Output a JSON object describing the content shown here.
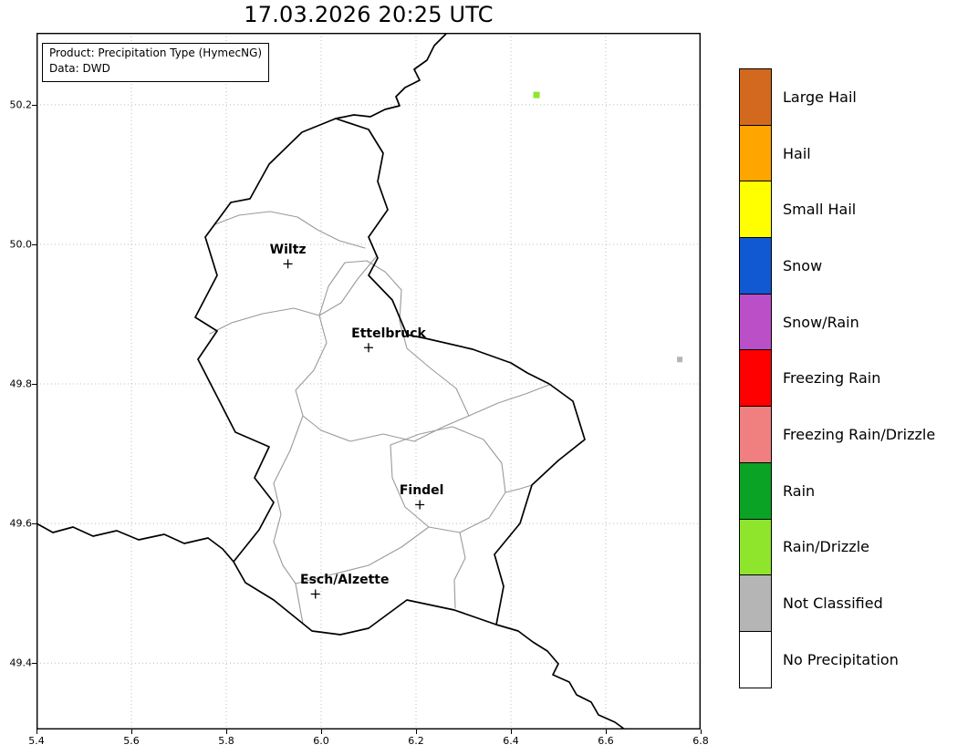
{
  "title": "17.03.2026 20:25 UTC",
  "info_box": {
    "product": "Product: Precipitation Type (HymecNG)",
    "source": "Data: DWD"
  },
  "axes": {
    "x_ticks": [
      "5.4",
      "5.6",
      "5.8",
      "6.0",
      "6.2",
      "6.4",
      "6.6",
      "6.8"
    ],
    "y_ticks": [
      "50.2",
      "50.0",
      "49.8",
      "49.6",
      "49.4"
    ],
    "x_range": [
      5.4,
      6.8
    ],
    "y_range": [
      49.305,
      50.303
    ]
  },
  "legend": {
    "items": [
      {
        "label": "Large Hail",
        "color": "#d2691e"
      },
      {
        "label": "Hail",
        "color": "#ffa500"
      },
      {
        "label": "Small Hail",
        "color": "#ffff00"
      },
      {
        "label": "Snow",
        "color": "#1159d2"
      },
      {
        "label": "Snow/Rain",
        "color": "#ba4fc8"
      },
      {
        "label": "Freezing Rain",
        "color": "#ff0000"
      },
      {
        "label": "Freezing Rain/Drizzle",
        "color": "#f08080"
      },
      {
        "label": "Rain",
        "color": "#0aa325"
      },
      {
        "label": "Rain/Drizzle",
        "color": "#8fe52b"
      },
      {
        "label": "Not Classified",
        "color": "#b5b5b5"
      },
      {
        "label": "No Precipitation",
        "color": "#ffffff"
      }
    ]
  },
  "cities": [
    {
      "name": "Wiltz",
      "lon": 5.93,
      "lat": 49.972,
      "label_dx": 0
    },
    {
      "name": "Ettelbruck",
      "lon": 6.1,
      "lat": 49.852,
      "label_dx": 22
    },
    {
      "name": "Findel",
      "lon": 6.208,
      "lat": 49.627,
      "label_dx": 2
    },
    {
      "name": "Esch/Alzette",
      "lon": 5.988,
      "lat": 49.499,
      "label_dx": 32
    }
  ],
  "precip_points": [
    {
      "category": "Rain/Drizzle",
      "lon": 6.454,
      "lat": 50.214,
      "size": 7
    },
    {
      "category": "Not Classified",
      "lon": 6.756,
      "lat": 49.835,
      "size": 6
    }
  ]
}
